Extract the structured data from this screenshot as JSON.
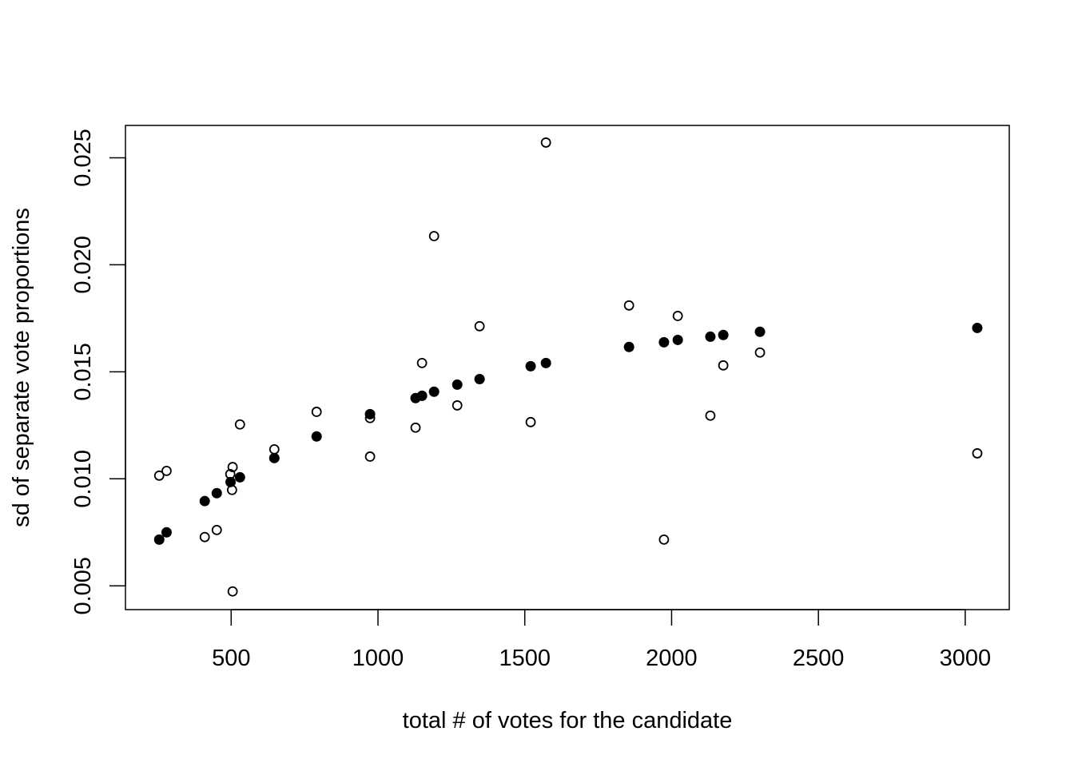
{
  "chart_data": {
    "type": "scatter",
    "title": "",
    "xlabel": "total # of votes for the candidate",
    "ylabel": "sd of separate vote proportions",
    "xlim": [
      140,
      3150
    ],
    "ylim": [
      0.00389,
      0.02651
    ],
    "xticks": [
      500,
      1000,
      1500,
      2000,
      2500,
      3000
    ],
    "xtick_labels": [
      "500",
      "1000",
      "1500",
      "2000",
      "2500",
      "3000"
    ],
    "yticks": [
      0.005,
      0.01,
      0.015,
      0.02,
      0.025
    ],
    "ytick_labels": [
      "0.005",
      "0.010",
      "0.015",
      "0.020",
      "0.025"
    ],
    "grid": false,
    "series": [
      {
        "name": "filled",
        "marker": "filled-circle",
        "color": "#000000",
        "x": [
          255,
          280,
          410,
          451,
          498,
          530,
          647,
          791,
          973,
          1128,
          1150,
          1191,
          1270,
          1346,
          1520,
          1572,
          1855,
          1974,
          2021,
          2132,
          2176,
          2301,
          3041
        ],
        "y": [
          0.00716,
          0.0075,
          0.00896,
          0.00933,
          0.00985,
          0.01007,
          0.01097,
          0.01198,
          0.01302,
          0.01377,
          0.01388,
          0.01407,
          0.0144,
          0.01466,
          0.01526,
          0.01541,
          0.01616,
          0.01638,
          0.01649,
          0.01664,
          0.01672,
          0.01687,
          0.01705
        ]
      },
      {
        "name": "open",
        "marker": "open-circle",
        "color": "#000000",
        "x": [
          255,
          280,
          410,
          451,
          497,
          505,
          503,
          505,
          530,
          647,
          791,
          973,
          973,
          1128,
          1150,
          1191,
          1270,
          1346,
          1520,
          1572,
          1855,
          1974,
          2021,
          2132,
          2176,
          2301,
          3041
        ],
        "y": [
          0.01015,
          0.01037,
          0.00728,
          0.00761,
          0.01022,
          0.01055,
          0.00948,
          0.00474,
          0.01254,
          0.01138,
          0.01313,
          0.01284,
          0.01104,
          0.01239,
          0.01541,
          0.02134,
          0.01343,
          0.01713,
          0.01265,
          0.02571,
          0.0181,
          0.00716,
          0.01761,
          0.01295,
          0.0153,
          0.0159,
          0.01119
        ]
      }
    ]
  }
}
